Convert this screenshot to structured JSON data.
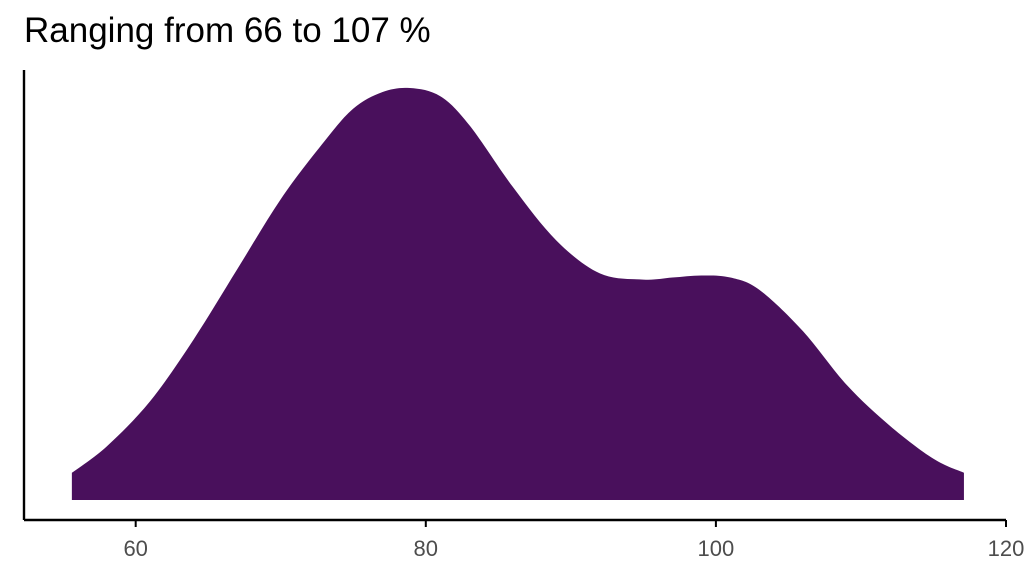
{
  "chart_data": {
    "type": "area",
    "title": "Ranging from 66 to 107 %",
    "xlabel": "",
    "ylabel": "",
    "xlim": [
      52.3,
      120
    ],
    "ylim": [
      0,
      1
    ],
    "x_ticks": [
      60,
      80,
      100,
      120
    ],
    "x_tick_labels": [
      "60",
      "80",
      "100",
      "120"
    ],
    "y_ticks": [],
    "grid": false,
    "legend": "none",
    "fill_color": "#49105C",
    "series": [
      {
        "x": [
          55.6,
          58,
          61,
          64,
          67,
          70,
          73,
          75,
          77,
          78.9,
          81,
          83,
          86,
          89,
          92,
          95,
          97,
          99,
          101,
          103,
          106,
          109,
          112,
          115,
          117.1
        ],
        "y": [
          0.066,
          0.13,
          0.24,
          0.39,
          0.56,
          0.73,
          0.87,
          0.95,
          0.99,
          1.0,
          0.98,
          0.91,
          0.76,
          0.63,
          0.55,
          0.535,
          0.54,
          0.545,
          0.54,
          0.51,
          0.41,
          0.28,
          0.18,
          0.1,
          0.066
        ]
      }
    ]
  }
}
